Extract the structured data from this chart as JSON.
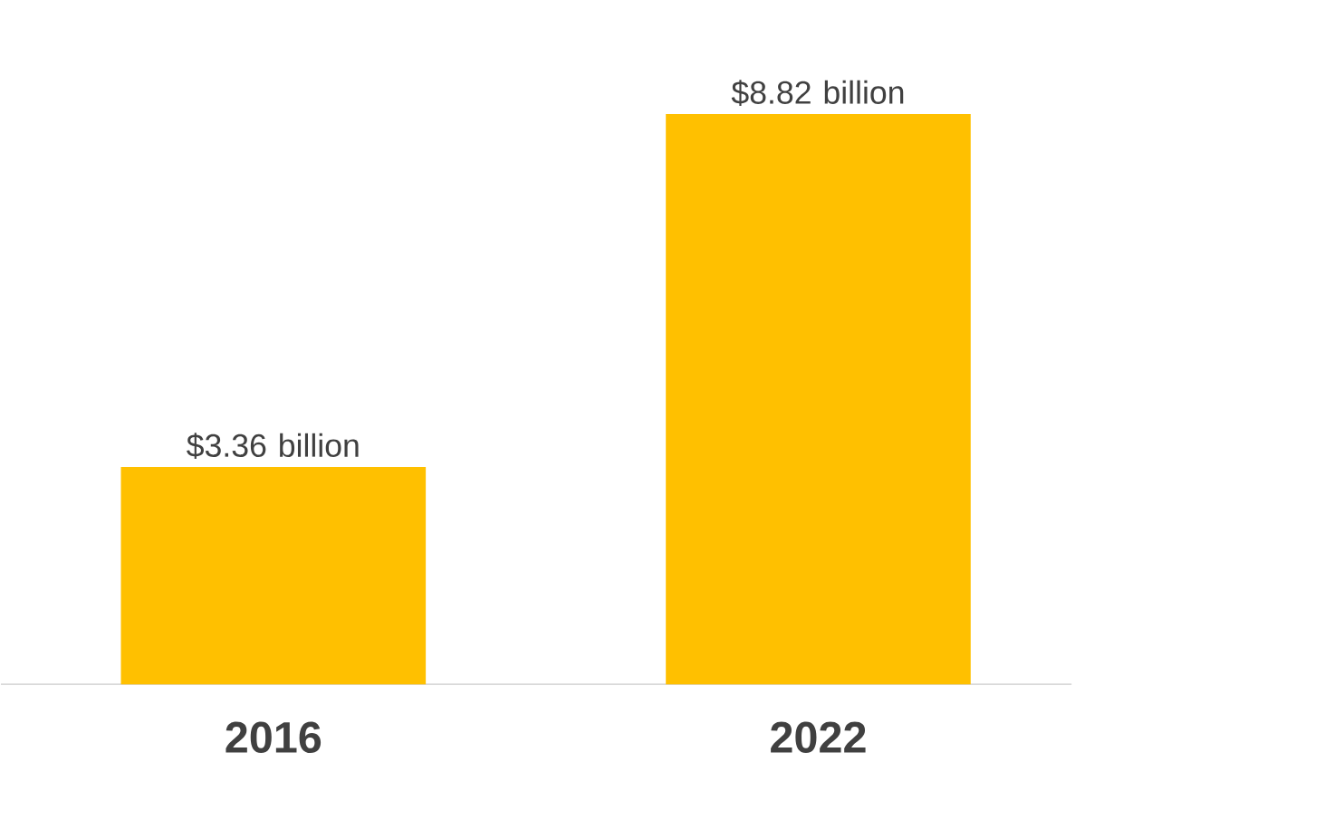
{
  "chart_data": {
    "type": "bar",
    "categories": [
      "2016",
      "2022"
    ],
    "values": [
      3.36,
      8.82
    ],
    "color": "#ffc000",
    "value_labels": [
      "$3.36 billion",
      "$8.82 billion"
    ]
  }
}
